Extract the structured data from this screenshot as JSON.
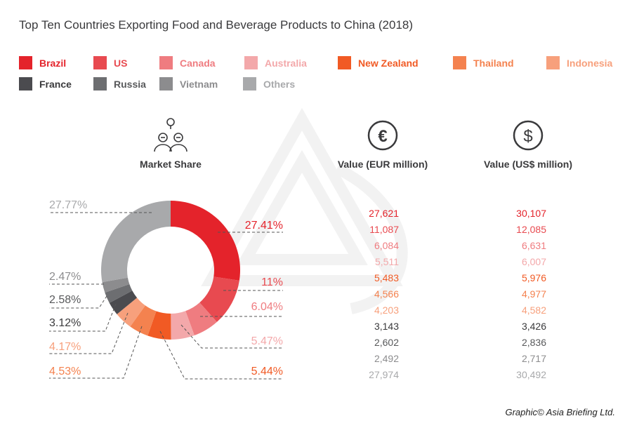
{
  "chart_data": {
    "type": "pie",
    "title": "Top Ten Countries Exporting Food and Beverage Products to China (2018)",
    "columns": {
      "share": "Market Share",
      "eur": "Value (EUR million)",
      "usd": "Value (US$ million)"
    },
    "series": [
      {
        "name": "Brazil",
        "share_label": "27.41%",
        "share": 27.41,
        "eur": "27,621",
        "usd": "30,107",
        "color": "#e4232b"
      },
      {
        "name": "US",
        "share_label": "11%",
        "share": 11,
        "eur": "11,087",
        "usd": "12,085",
        "color": "#e84a50"
      },
      {
        "name": "Canada",
        "share_label": "6.04%",
        "share": 6.04,
        "eur": "6,084",
        "usd": "6,631",
        "color": "#ef7c80"
      },
      {
        "name": "Australia",
        "share_label": "5.47%",
        "share": 5.47,
        "eur": "5,511",
        "usd": "6,007",
        "color": "#f3a8aa"
      },
      {
        "name": "New Zealand",
        "share_label": "5.44%",
        "share": 5.44,
        "eur": "5,483",
        "usd": "5,976",
        "color": "#f15a24"
      },
      {
        "name": "Thailand",
        "share_label": "4.53%",
        "share": 4.53,
        "eur": "4,566",
        "usd": "4,977",
        "color": "#f4824f"
      },
      {
        "name": "Indonesia",
        "share_label": "4.17%",
        "share": 4.17,
        "eur": "4,203",
        "usd": "4,582",
        "color": "#f7a07c"
      },
      {
        "name": "France",
        "share_label": "3.12%",
        "share": 3.12,
        "eur": "3,143",
        "usd": "3,426",
        "color": "#4b4b4f"
      },
      {
        "name": "Russia",
        "share_label": "2.58%",
        "share": 2.58,
        "eur": "2,602",
        "usd": "2,836",
        "color": "#6d6e71"
      },
      {
        "name": "Vietnam",
        "share_label": "2.47%",
        "share": 2.47,
        "eur": "2,492",
        "usd": "2,717",
        "color": "#8c8c8e"
      },
      {
        "name": "Others",
        "share_label": "27.77%",
        "share": 27.77,
        "eur": "27,974",
        "usd": "30,492",
        "color": "#a8a9ab"
      }
    ],
    "legend": "top"
  },
  "icons": {
    "share": "people-network-icon",
    "eur": "euro-circle-icon",
    "usd": "dollar-circle-icon"
  },
  "credit": "Graphic© Asia Briefing Ltd."
}
